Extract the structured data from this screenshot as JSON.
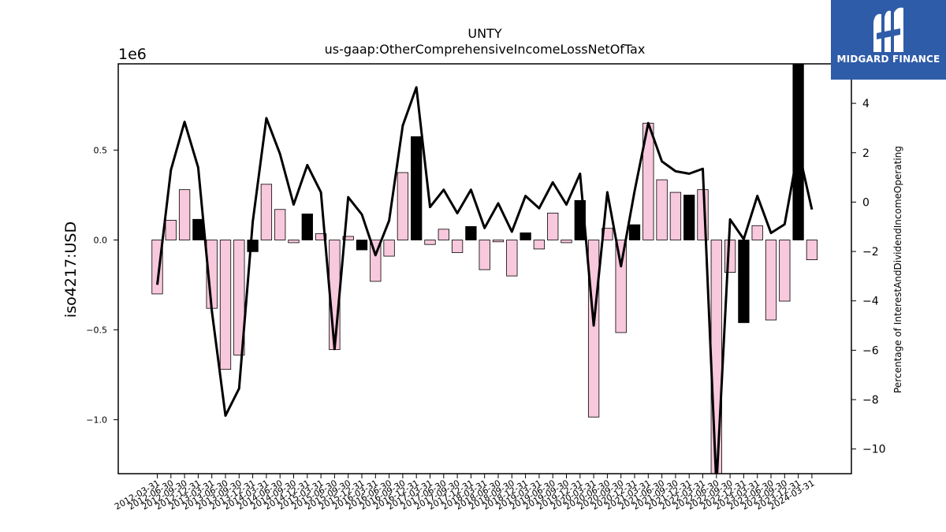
{
  "chart_data": {
    "type": "bar",
    "title": "UNTY",
    "subtitle": "us-gaap:OtherComprehensiveIncomeLossNetOfTax",
    "ylabel": "iso4217:USD",
    "y_offset_label": "1e6",
    "y2label": "Percentage of InterestAndDividendIncomeOperating",
    "ylim": [
      -1300000,
      980000
    ],
    "y2lim": [
      -11,
      5.6
    ],
    "y_ticks": [
      {
        "v": -1000000,
        "label": "−1.0"
      },
      {
        "v": -500000,
        "label": "−0.5"
      },
      {
        "v": 0,
        "label": "0.0"
      },
      {
        "v": 500000,
        "label": "0.5"
      }
    ],
    "y2_ticks": [
      {
        "v": -10,
        "label": "−10"
      },
      {
        "v": -8,
        "label": "−8"
      },
      {
        "v": -6,
        "label": "−6"
      },
      {
        "v": -4,
        "label": "−4"
      },
      {
        "v": -2,
        "label": "−2"
      },
      {
        "v": 0,
        "label": "0"
      },
      {
        "v": 2,
        "label": "2"
      },
      {
        "v": 4,
        "label": "4"
      }
    ],
    "categories": [
      "2012-03-31",
      "2012-06-30",
      "2012-09-30",
      "2012-12-31",
      "2013-03-31",
      "2013-06-30",
      "2013-09-30",
      "2013-12-31",
      "2014-03-31",
      "2014-06-30",
      "2014-09-30",
      "2014-12-31",
      "2015-03-31",
      "2015-06-30",
      "2015-09-30",
      "2015-12-31",
      "2016-03-31",
      "2016-06-30",
      "2016-09-30",
      "2016-12-31",
      "2017-03-31",
      "2017-06-30",
      "2017-09-30",
      "2017-12-31",
      "2018-03-31",
      "2018-06-30",
      "2018-09-30",
      "2018-12-31",
      "2019-03-31",
      "2019-06-30",
      "2019-09-30",
      "2019-12-31",
      "2020-03-31",
      "2020-06-30",
      "2020-09-30",
      "2020-12-31",
      "2021-03-31",
      "2021-06-30",
      "2021-09-30",
      "2021-12-31",
      "2022-03-31",
      "2022-06-30",
      "2022-09-30",
      "2022-12-31",
      "2023-03-31",
      "2023-06-30",
      "2023-09-30",
      "2023-12-31",
      "2024-03-31"
    ],
    "series": [
      {
        "kind": "bar",
        "values": [
          -300000,
          110000,
          280000,
          115000,
          -380000,
          -720000,
          -640000,
          -65000,
          310000,
          170000,
          -15000,
          145000,
          35000,
          -610000,
          20000,
          -55000,
          -230000,
          -90000,
          375000,
          575000,
          -25000,
          60000,
          -70000,
          75000,
          -165000,
          -10000,
          -200000,
          40000,
          -50000,
          150000,
          -15000,
          220000,
          -985000,
          65000,
          -515000,
          85000,
          650000,
          335000,
          265000,
          250000,
          280000,
          -1350000,
          -180000,
          -460000,
          80000,
          -445000,
          -340000,
          1000000,
          -110000
        ],
        "colors": [
          "#f8c8dc",
          "#f8c8dc",
          "#f8c8dc",
          "#000000",
          "#f8c8dc",
          "#f8c8dc",
          "#f8c8dc",
          "#000000",
          "#f8c8dc",
          "#f8c8dc",
          "#f8c8dc",
          "#000000",
          "#f8c8dc",
          "#f8c8dc",
          "#f8c8dc",
          "#000000",
          "#f8c8dc",
          "#f8c8dc",
          "#f8c8dc",
          "#000000",
          "#f8c8dc",
          "#f8c8dc",
          "#f8c8dc",
          "#000000",
          "#f8c8dc",
          "#f8c8dc",
          "#f8c8dc",
          "#000000",
          "#f8c8dc",
          "#f8c8dc",
          "#f8c8dc",
          "#000000",
          "#f8c8dc",
          "#f8c8dc",
          "#f8c8dc",
          "#000000",
          "#f8c8dc",
          "#f8c8dc",
          "#f8c8dc",
          "#000000",
          "#f8c8dc",
          "#f8c8dc",
          "#f8c8dc",
          "#000000",
          "#f8c8dc",
          "#f8c8dc",
          "#f8c8dc",
          "#000000",
          "#f8c8dc"
        ]
      },
      {
        "kind": "line",
        "axis": "right",
        "color": "#000000",
        "values": [
          -3.35,
          1.3,
          3.25,
          1.4,
          -4.4,
          -8.65,
          -7.55,
          -0.8,
          3.4,
          1.95,
          -0.1,
          1.5,
          0.4,
          -5.95,
          0.2,
          -0.5,
          -2.15,
          -0.75,
          3.1,
          4.65,
          -0.2,
          0.5,
          -0.45,
          0.5,
          -1.05,
          -0.05,
          -1.2,
          0.25,
          -0.25,
          0.8,
          -0.1,
          1.15,
          -5.0,
          0.4,
          -2.6,
          0.45,
          3.2,
          1.65,
          1.25,
          1.15,
          1.35,
          -11.5,
          -0.7,
          -1.5,
          0.25,
          -1.25,
          -0.9,
          2.15,
          -0.3
        ]
      }
    ],
    "grid": false
  },
  "logo": {
    "text": "MIDGARD FINANCE",
    "bg": "#2f5ca8"
  }
}
